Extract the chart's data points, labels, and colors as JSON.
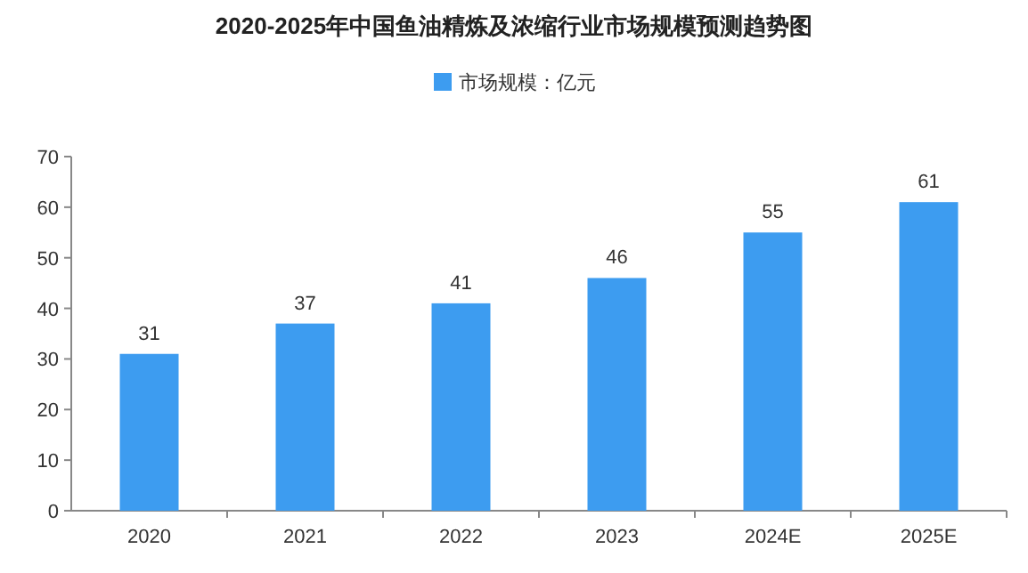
{
  "chart_data": {
    "type": "bar",
    "title": "2020-2025年中国鱼油精炼及浓缩行业市场规模预测趋势图",
    "categories": [
      "2020",
      "2021",
      "2022",
      "2023",
      "2024E",
      "2025E"
    ],
    "series": [
      {
        "name": "市场规模：亿元",
        "color": "#3d9cf0",
        "values": [
          31,
          37,
          41,
          46,
          55,
          61
        ]
      }
    ],
    "ylim": [
      0,
      70
    ],
    "yticks": [
      0,
      10,
      20,
      30,
      40,
      50,
      60,
      70
    ],
    "data_labels": true,
    "legend": "top",
    "grid": false
  }
}
